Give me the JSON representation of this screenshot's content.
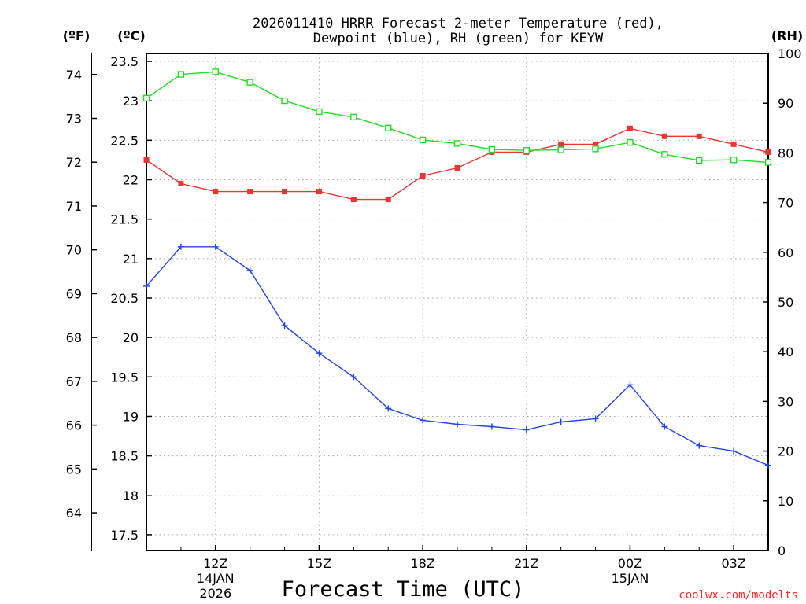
{
  "chart_data": {
    "type": "line",
    "title_line1": "2026011410 HRRR Forecast 2-meter Temperature (red),",
    "title_line2": "Dewpoint (blue), RH (green) for KEYW",
    "xlabel": "Forecast Time (UTC)",
    "credit": "coolwx.com/modelts",
    "units": {
      "fahrenheit": "(ºF)",
      "celsius": "(ºC)",
      "rh": "(RH)"
    },
    "x_hours": [
      10,
      11,
      12,
      13,
      14,
      15,
      16,
      17,
      18,
      19,
      20,
      21,
      22,
      23,
      24,
      25,
      26,
      27,
      28
    ],
    "xlim": [
      10,
      28
    ],
    "x_ticks": [
      {
        "hour": 12,
        "label": "12Z",
        "date": "14JAN",
        "year": "2026"
      },
      {
        "hour": 15,
        "label": "15Z",
        "date": "",
        "year": ""
      },
      {
        "hour": 18,
        "label": "18Z",
        "date": "",
        "year": ""
      },
      {
        "hour": 21,
        "label": "21Z",
        "date": "",
        "year": ""
      },
      {
        "hour": 24,
        "label": "00Z",
        "date": "15JAN",
        "year": ""
      },
      {
        "hour": 27,
        "label": "03Z",
        "date": "",
        "year": ""
      }
    ],
    "celsius_axis": {
      "min": 17.3,
      "max": 23.6,
      "ticks": [
        "17.5",
        "18",
        "18.5",
        "19",
        "19.5",
        "20",
        "20.5",
        "21",
        "21.5",
        "22",
        "22.5",
        "23",
        "23.5"
      ]
    },
    "fahrenheit_ticks": [
      "64",
      "65",
      "66",
      "67",
      "68",
      "69",
      "70",
      "71",
      "72",
      "73",
      "74"
    ],
    "rh_axis": {
      "min": 0,
      "max": 100,
      "ticks": [
        "0",
        "10",
        "20",
        "30",
        "40",
        "50",
        "60",
        "70",
        "80",
        "90",
        "100"
      ]
    },
    "series": [
      {
        "name": "Temperature",
        "color": "#ee3333",
        "axis": "celsius",
        "marker": "filled-square",
        "values": [
          22.25,
          21.95,
          21.85,
          21.85,
          21.85,
          21.85,
          21.75,
          21.75,
          22.05,
          22.15,
          22.35,
          22.35,
          22.45,
          22.45,
          22.65,
          22.55,
          22.55,
          22.45,
          22.35
        ]
      },
      {
        "name": "Dewpoint",
        "color": "#2244ee",
        "axis": "celsius",
        "marker": "plus",
        "values": [
          20.65,
          21.15,
          21.15,
          20.85,
          20.15,
          19.8,
          19.5,
          19.1,
          18.95,
          18.9,
          18.87,
          18.83,
          18.93,
          18.97,
          19.4,
          18.87,
          18.63,
          18.56,
          18.38
        ]
      },
      {
        "name": "RH",
        "color": "#22dd22",
        "axis": "rh",
        "marker": "open-square",
        "values": [
          91,
          95.8,
          96.3,
          94.2,
          90.5,
          88.3,
          87.2,
          85,
          82.6,
          81.9,
          80.7,
          80.5,
          80.6,
          80.8,
          82.1,
          79.7,
          78.5,
          78.6,
          78.1
        ]
      }
    ]
  }
}
